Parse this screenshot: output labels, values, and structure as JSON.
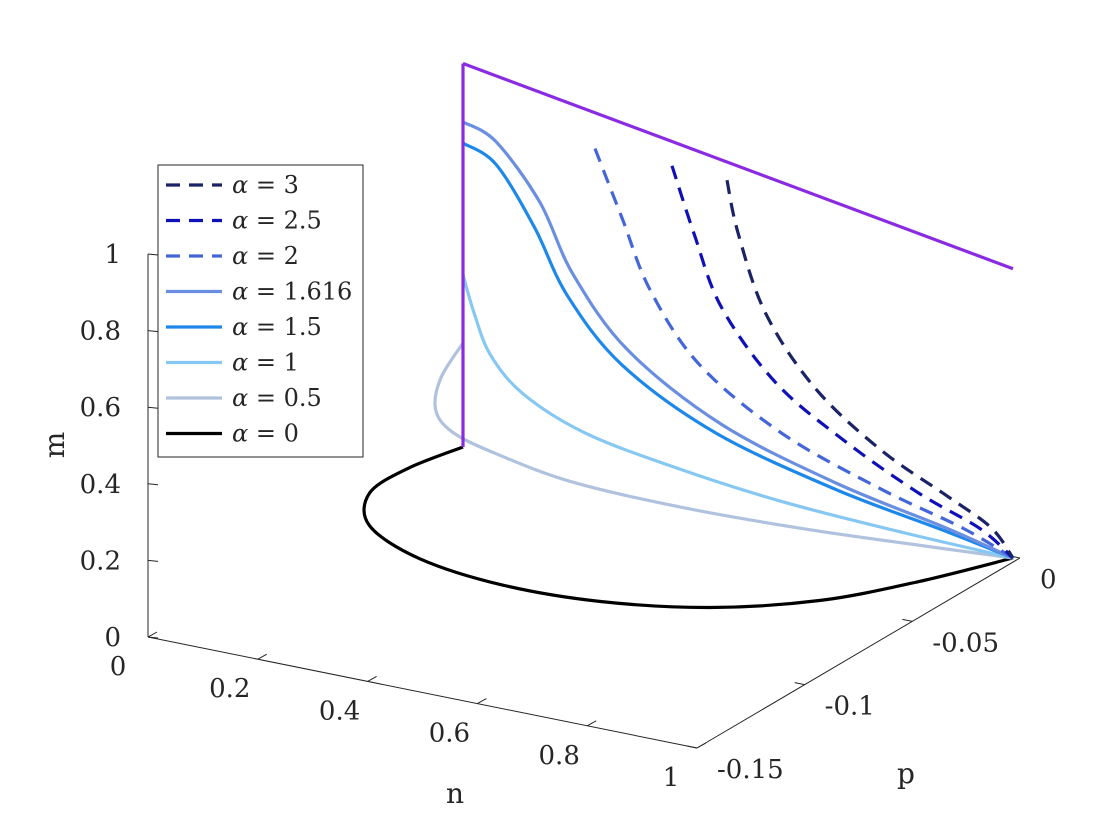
{
  "chart_data": {
    "type": "line",
    "projection": "3d",
    "title": "",
    "axes": {
      "n": {
        "label": "n",
        "range": [
          0,
          1
        ],
        "ticks": [
          "0",
          "0.2",
          "0.4",
          "0.6",
          "0.8",
          "1"
        ]
      },
      "p": {
        "label": "p",
        "range": [
          -0.15,
          0
        ],
        "ticks": [
          "-0.15",
          "-0.1",
          "-0.05",
          "0"
        ]
      },
      "m": {
        "label": "m",
        "range": [
          0,
          1
        ],
        "ticks": [
          "0",
          "0.2",
          "0.4",
          "0.6",
          "0.8",
          "1"
        ]
      }
    },
    "grid": false,
    "legend_position": "left",
    "series": [
      {
        "name": "α = 3",
        "legend_symbol": "α",
        "legend_value": "= 3",
        "color": "#1a2366",
        "dash": true,
        "points": [
          [
            0.48,
            0.985
          ],
          [
            0.5,
            0.83
          ],
          [
            0.55,
            0.6
          ],
          [
            0.64,
            0.4
          ],
          [
            0.76,
            0.25
          ],
          [
            0.88,
            0.15
          ],
          [
            0.96,
            0.08
          ],
          [
            1.0,
            0.0
          ]
        ]
      },
      {
        "name": "α = 2.5",
        "legend_symbol": "α",
        "legend_value": "= 2.5",
        "color": "#0f10b8",
        "dash": true,
        "points": [
          [
            0.38,
            0.995
          ],
          [
            0.42,
            0.8
          ],
          [
            0.47,
            0.59
          ],
          [
            0.57,
            0.39
          ],
          [
            0.7,
            0.25
          ],
          [
            0.83,
            0.14
          ],
          [
            0.94,
            0.07
          ],
          [
            1.0,
            0.0
          ]
        ]
      },
      {
        "name": "α = 2",
        "legend_symbol": "α",
        "legend_value": "= 2",
        "color": "#4466d8",
        "dash": true,
        "points": [
          [
            0.24,
            1.0
          ],
          [
            0.29,
            0.8
          ],
          [
            0.34,
            0.6
          ],
          [
            0.43,
            0.4
          ],
          [
            0.58,
            0.24
          ],
          [
            0.76,
            0.13
          ],
          [
            0.91,
            0.06
          ],
          [
            1.0,
            0.0
          ]
        ]
      },
      {
        "name": "α = 1.616",
        "legend_symbol": "α",
        "legend_value": "= 1.616",
        "color": "#6b8fe0",
        "dash": false,
        "points": [
          [
            0.0,
            1.0
          ],
          [
            0.06,
            0.96
          ],
          [
            0.14,
            0.8
          ],
          [
            0.2,
            0.6
          ],
          [
            0.3,
            0.4
          ],
          [
            0.47,
            0.23
          ],
          [
            0.68,
            0.12
          ],
          [
            0.88,
            0.05
          ],
          [
            1.0,
            0.0
          ]
        ]
      },
      {
        "name": "α = 1.5",
        "legend_symbol": "α",
        "legend_value": "= 1.5",
        "color": "#1e88ea",
        "dash": false,
        "points": [
          [
            0.0,
            0.935
          ],
          [
            0.06,
            0.89
          ],
          [
            0.13,
            0.72
          ],
          [
            0.19,
            0.53
          ],
          [
            0.29,
            0.35
          ],
          [
            0.46,
            0.2
          ],
          [
            0.68,
            0.1
          ],
          [
            0.88,
            0.04
          ],
          [
            1.0,
            0.0
          ]
        ]
      },
      {
        "name": "α = 1",
        "legend_symbol": "α",
        "legend_value": "= 1",
        "color": "#86c8f2",
        "dash": false,
        "points": [
          [
            0.0,
            0.53
          ],
          [
            0.02,
            0.42
          ],
          [
            0.05,
            0.3
          ],
          [
            0.11,
            0.2
          ],
          [
            0.22,
            0.12
          ],
          [
            0.38,
            0.07
          ],
          [
            0.58,
            0.03
          ],
          [
            0.8,
            0.01
          ],
          [
            1.0,
            0.0
          ]
        ]
      },
      {
        "name": "α = 0.5",
        "legend_symbol": "α",
        "legend_value": "= 0.5",
        "color": "#b0c2de",
        "dash": false,
        "points": [
          [
            0.0,
            0.32
          ],
          [
            -0.04,
            0.2
          ],
          [
            -0.05,
            0.1
          ],
          [
            -0.02,
            0.04
          ],
          [
            0.06,
            0.0
          ],
          [
            0.2,
            -0.04
          ],
          [
            0.4,
            -0.05
          ],
          [
            0.62,
            -0.04
          ],
          [
            0.82,
            -0.02
          ],
          [
            1.0,
            0.0
          ]
        ]
      },
      {
        "name": "α = 0",
        "legend_symbol": "α",
        "legend_value": "= 0",
        "color": "#000000",
        "dash": false,
        "points": [
          [
            0.0,
            0.0
          ],
          [
            -0.1,
            -0.1
          ],
          [
            -0.17,
            -0.2
          ],
          [
            -0.17,
            -0.3
          ],
          [
            -0.08,
            -0.37
          ],
          [
            0.07,
            -0.4
          ],
          [
            0.25,
            -0.39
          ],
          [
            0.45,
            -0.34
          ],
          [
            0.65,
            -0.25
          ],
          [
            0.83,
            -0.13
          ],
          [
            1.0,
            0.0
          ]
        ]
      }
    ],
    "boundary": {
      "color": "#8a2be2",
      "segments": [
        {
          "name": "vertical edge",
          "points": [
            [
              0.0,
              0.0
            ],
            [
              0.0,
              1.18
            ]
          ]
        },
        {
          "name": "top edge",
          "points": [
            [
              0.0,
              1.18
            ],
            [
              1.0,
              0.89
            ]
          ]
        }
      ]
    }
  }
}
